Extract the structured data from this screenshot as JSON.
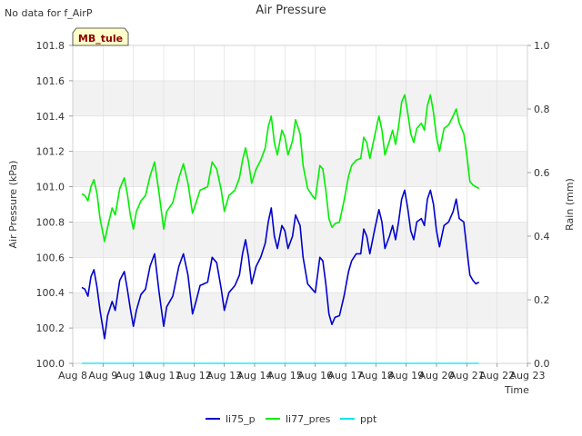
{
  "page": {
    "note": "No data for f_AirP",
    "site_label": "MB_tule"
  },
  "chart_data": {
    "type": "line",
    "title": "Air Pressure",
    "xlabel": "Time",
    "ylabel": "Air Pressure (kPa)",
    "y2label": "Rain (mm)",
    "xlim": [
      8,
      23
    ],
    "ylim": [
      100.0,
      101.8
    ],
    "y2lim": [
      0.0,
      1.0
    ],
    "x_ticks": [
      8,
      9,
      10,
      11,
      12,
      13,
      14,
      15,
      16,
      17,
      18,
      19,
      20,
      21,
      22,
      23
    ],
    "x_tick_labels": [
      "Aug 8",
      "Aug 9",
      "Aug 10",
      "Aug 11",
      "Aug 12",
      "Aug 13",
      "Aug 14",
      "Aug 15",
      "Aug 16",
      "Aug 17",
      "Aug 18",
      "Aug 19",
      "Aug 20",
      "Aug 21",
      "Aug 22",
      "Aug 23"
    ],
    "y_ticks": [
      100.0,
      100.2,
      100.4,
      100.6,
      100.8,
      101.0,
      101.2,
      101.4,
      101.6,
      101.8
    ],
    "y_tick_labels": [
      "100.0",
      "100.2",
      "100.4",
      "100.6",
      "100.8",
      "101.0",
      "101.2",
      "101.4",
      "101.6",
      "101.8"
    ],
    "y2_ticks": [
      0.0,
      0.2,
      0.4,
      0.6,
      0.8,
      1.0
    ],
    "y2_tick_labels": [
      "0.0",
      "0.2",
      "0.4",
      "0.6",
      "0.8",
      "1.0"
    ],
    "legend_position": "bottom-center",
    "colors": {
      "band": "#f2f2f2",
      "grid": "#dcdcdc",
      "axis": "#888888",
      "badge_bg": "#ffffcc",
      "badge_text": "#8b0000"
    },
    "series": [
      {
        "name": "li75_p",
        "color": "#0000cc",
        "axis": "left",
        "points": [
          [
            8.3,
            100.43
          ],
          [
            8.4,
            100.42
          ],
          [
            8.5,
            100.38
          ],
          [
            8.6,
            100.49
          ],
          [
            8.7,
            100.53
          ],
          [
            8.8,
            100.43
          ],
          [
            8.9,
            100.3
          ],
          [
            9.05,
            100.14
          ],
          [
            9.15,
            100.27
          ],
          [
            9.3,
            100.35
          ],
          [
            9.4,
            100.3
          ],
          [
            9.55,
            100.47
          ],
          [
            9.7,
            100.52
          ],
          [
            9.8,
            100.42
          ],
          [
            9.9,
            100.31
          ],
          [
            10.0,
            100.21
          ],
          [
            10.1,
            100.3
          ],
          [
            10.25,
            100.39
          ],
          [
            10.4,
            100.42
          ],
          [
            10.55,
            100.55
          ],
          [
            10.7,
            100.62
          ],
          [
            10.85,
            100.4
          ],
          [
            11.0,
            100.21
          ],
          [
            11.1,
            100.32
          ],
          [
            11.3,
            100.38
          ],
          [
            11.5,
            100.55
          ],
          [
            11.65,
            100.62
          ],
          [
            11.8,
            100.5
          ],
          [
            11.95,
            100.28
          ],
          [
            12.05,
            100.34
          ],
          [
            12.2,
            100.44
          ],
          [
            12.45,
            100.46
          ],
          [
            12.6,
            100.6
          ],
          [
            12.75,
            100.57
          ],
          [
            12.9,
            100.42
          ],
          [
            13.0,
            100.3
          ],
          [
            13.15,
            100.4
          ],
          [
            13.35,
            100.44
          ],
          [
            13.5,
            100.5
          ],
          [
            13.6,
            100.62
          ],
          [
            13.7,
            100.7
          ],
          [
            13.8,
            100.6
          ],
          [
            13.9,
            100.45
          ],
          [
            14.05,
            100.55
          ],
          [
            14.2,
            100.6
          ],
          [
            14.35,
            100.68
          ],
          [
            14.45,
            100.8
          ],
          [
            14.55,
            100.88
          ],
          [
            14.65,
            100.72
          ],
          [
            14.75,
            100.65
          ],
          [
            14.9,
            100.78
          ],
          [
            15.0,
            100.75
          ],
          [
            15.1,
            100.65
          ],
          [
            15.25,
            100.72
          ],
          [
            15.35,
            100.84
          ],
          [
            15.5,
            100.78
          ],
          [
            15.6,
            100.6
          ],
          [
            15.75,
            100.45
          ],
          [
            15.9,
            100.42
          ],
          [
            16.0,
            100.4
          ],
          [
            16.15,
            100.6
          ],
          [
            16.25,
            100.58
          ],
          [
            16.35,
            100.45
          ],
          [
            16.45,
            100.28
          ],
          [
            16.55,
            100.22
          ],
          [
            16.65,
            100.26
          ],
          [
            16.8,
            100.27
          ],
          [
            16.95,
            100.38
          ],
          [
            17.1,
            100.52
          ],
          [
            17.2,
            100.58
          ],
          [
            17.35,
            100.62
          ],
          [
            17.5,
            100.62
          ],
          [
            17.6,
            100.76
          ],
          [
            17.7,
            100.72
          ],
          [
            17.8,
            100.62
          ],
          [
            17.95,
            100.75
          ],
          [
            18.1,
            100.87
          ],
          [
            18.2,
            100.8
          ],
          [
            18.3,
            100.65
          ],
          [
            18.45,
            100.72
          ],
          [
            18.55,
            100.78
          ],
          [
            18.65,
            100.7
          ],
          [
            18.75,
            100.8
          ],
          [
            18.85,
            100.93
          ],
          [
            18.95,
            100.98
          ],
          [
            19.05,
            100.88
          ],
          [
            19.15,
            100.75
          ],
          [
            19.25,
            100.7
          ],
          [
            19.35,
            100.8
          ],
          [
            19.5,
            100.82
          ],
          [
            19.6,
            100.78
          ],
          [
            19.7,
            100.93
          ],
          [
            19.8,
            100.98
          ],
          [
            19.9,
            100.9
          ],
          [
            20.0,
            100.75
          ],
          [
            20.1,
            100.66
          ],
          [
            20.25,
            100.78
          ],
          [
            20.4,
            100.8
          ],
          [
            20.55,
            100.86
          ],
          [
            20.65,
            100.93
          ],
          [
            20.75,
            100.82
          ],
          [
            20.9,
            100.8
          ],
          [
            21.0,
            100.65
          ],
          [
            21.1,
            100.5
          ],
          [
            21.2,
            100.47
          ],
          [
            21.3,
            100.45
          ],
          [
            21.4,
            100.46
          ]
        ]
      },
      {
        "name": "li77_pres",
        "color": "#00ee00",
        "axis": "left",
        "points": [
          [
            8.3,
            100.96
          ],
          [
            8.4,
            100.95
          ],
          [
            8.5,
            100.92
          ],
          [
            8.6,
            101.0
          ],
          [
            8.7,
            101.04
          ],
          [
            8.8,
            100.96
          ],
          [
            8.9,
            100.82
          ],
          [
            9.05,
            100.69
          ],
          [
            9.15,
            100.77
          ],
          [
            9.3,
            100.88
          ],
          [
            9.4,
            100.84
          ],
          [
            9.55,
            100.99
          ],
          [
            9.7,
            101.05
          ],
          [
            9.8,
            100.96
          ],
          [
            9.9,
            100.84
          ],
          [
            10.0,
            100.76
          ],
          [
            10.1,
            100.86
          ],
          [
            10.25,
            100.92
          ],
          [
            10.4,
            100.95
          ],
          [
            10.55,
            101.06
          ],
          [
            10.7,
            101.14
          ],
          [
            10.85,
            100.96
          ],
          [
            11.0,
            100.76
          ],
          [
            11.1,
            100.86
          ],
          [
            11.3,
            100.91
          ],
          [
            11.5,
            101.05
          ],
          [
            11.65,
            101.13
          ],
          [
            11.8,
            101.02
          ],
          [
            11.95,
            100.85
          ],
          [
            12.05,
            100.9
          ],
          [
            12.2,
            100.98
          ],
          [
            12.45,
            101.0
          ],
          [
            12.6,
            101.14
          ],
          [
            12.75,
            101.1
          ],
          [
            12.9,
            100.98
          ],
          [
            13.0,
            100.86
          ],
          [
            13.15,
            100.95
          ],
          [
            13.35,
            100.98
          ],
          [
            13.5,
            101.05
          ],
          [
            13.6,
            101.15
          ],
          [
            13.7,
            101.22
          ],
          [
            13.8,
            101.14
          ],
          [
            13.9,
            101.02
          ],
          [
            14.05,
            101.1
          ],
          [
            14.2,
            101.15
          ],
          [
            14.35,
            101.22
          ],
          [
            14.45,
            101.34
          ],
          [
            14.55,
            101.4
          ],
          [
            14.65,
            101.25
          ],
          [
            14.75,
            101.18
          ],
          [
            14.9,
            101.32
          ],
          [
            15.0,
            101.28
          ],
          [
            15.1,
            101.18
          ],
          [
            15.25,
            101.26
          ],
          [
            15.35,
            101.38
          ],
          [
            15.5,
            101.3
          ],
          [
            15.6,
            101.12
          ],
          [
            15.75,
            100.99
          ],
          [
            15.9,
            100.95
          ],
          [
            16.0,
            100.93
          ],
          [
            16.15,
            101.12
          ],
          [
            16.25,
            101.1
          ],
          [
            16.35,
            100.98
          ],
          [
            16.45,
            100.82
          ],
          [
            16.55,
            100.77
          ],
          [
            16.65,
            100.79
          ],
          [
            16.8,
            100.8
          ],
          [
            16.95,
            100.92
          ],
          [
            17.1,
            101.06
          ],
          [
            17.2,
            101.12
          ],
          [
            17.35,
            101.15
          ],
          [
            17.5,
            101.16
          ],
          [
            17.6,
            101.28
          ],
          [
            17.7,
            101.25
          ],
          [
            17.8,
            101.16
          ],
          [
            17.95,
            101.28
          ],
          [
            18.1,
            101.4
          ],
          [
            18.2,
            101.32
          ],
          [
            18.3,
            101.18
          ],
          [
            18.45,
            101.26
          ],
          [
            18.55,
            101.32
          ],
          [
            18.65,
            101.24
          ],
          [
            18.75,
            101.34
          ],
          [
            18.85,
            101.48
          ],
          [
            18.95,
            101.52
          ],
          [
            19.05,
            101.42
          ],
          [
            19.15,
            101.3
          ],
          [
            19.25,
            101.25
          ],
          [
            19.35,
            101.33
          ],
          [
            19.5,
            101.36
          ],
          [
            19.6,
            101.32
          ],
          [
            19.7,
            101.46
          ],
          [
            19.8,
            101.52
          ],
          [
            19.9,
            101.42
          ],
          [
            20.0,
            101.28
          ],
          [
            20.1,
            101.2
          ],
          [
            20.25,
            101.33
          ],
          [
            20.4,
            101.35
          ],
          [
            20.55,
            101.4
          ],
          [
            20.65,
            101.44
          ],
          [
            20.75,
            101.36
          ],
          [
            20.9,
            101.3
          ],
          [
            21.0,
            101.18
          ],
          [
            21.1,
            101.03
          ],
          [
            21.2,
            101.01
          ],
          [
            21.3,
            101.0
          ],
          [
            21.4,
            100.99
          ]
        ]
      },
      {
        "name": "ppt",
        "color": "#00e5ee",
        "axis": "right",
        "points": [
          [
            8.3,
            0.0
          ],
          [
            21.4,
            0.0
          ]
        ]
      }
    ]
  }
}
